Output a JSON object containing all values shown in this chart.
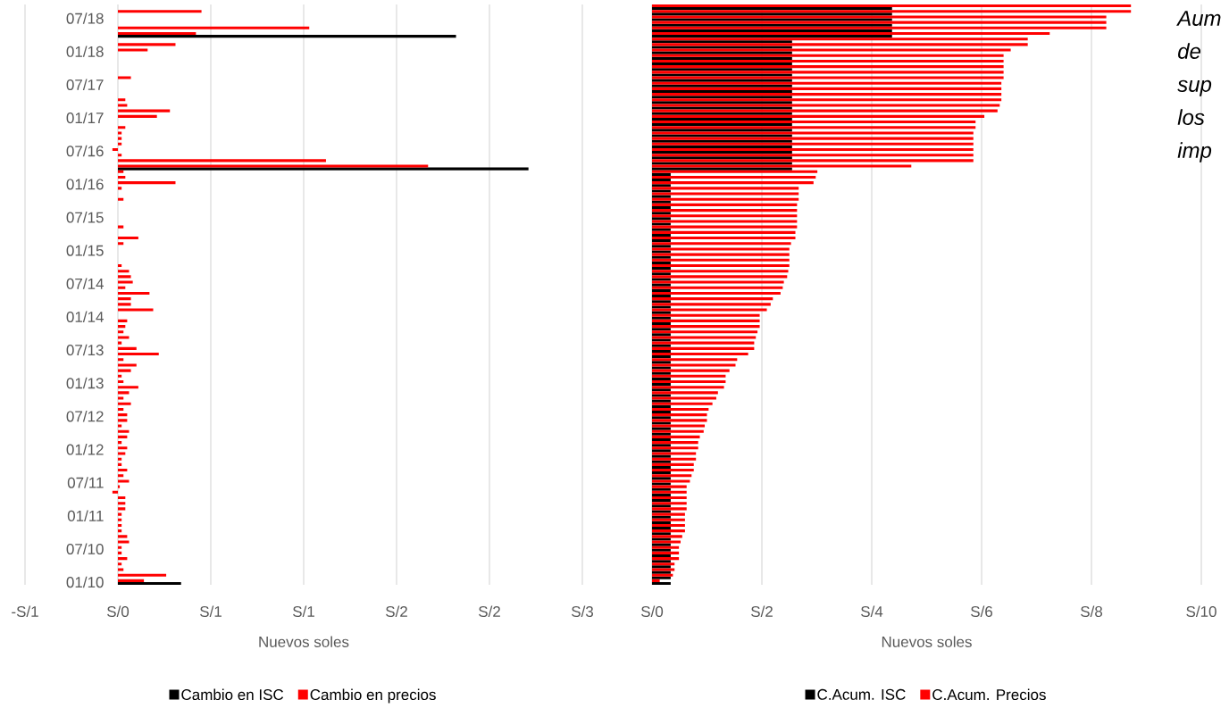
{
  "chart_data": [
    {
      "type": "bar",
      "orientation": "horizontal",
      "xlabel": "Nuevos soles",
      "categories": [
        null,
        null,
        "07/18",
        null,
        null,
        null,
        null,
        null,
        "01/18",
        null,
        null,
        null,
        null,
        null,
        "07/17",
        null,
        null,
        null,
        null,
        null,
        "01/17",
        null,
        null,
        null,
        null,
        null,
        "07/16",
        null,
        null,
        null,
        null,
        null,
        "01/16",
        null,
        null,
        null,
        null,
        null,
        "07/15",
        null,
        null,
        null,
        null,
        null,
        "01/15",
        null,
        null,
        null,
        null,
        null,
        "07/14",
        null,
        null,
        null,
        null,
        null,
        "01/14",
        null,
        null,
        null,
        null,
        null,
        "07/13",
        null,
        null,
        null,
        null,
        null,
        "01/13",
        null,
        null,
        null,
        null,
        null,
        "07/12",
        null,
        null,
        null,
        null,
        null,
        "01/12",
        null,
        null,
        null,
        null,
        null,
        "07/11",
        null,
        null,
        null,
        null,
        null,
        "01/11",
        null,
        null,
        null,
        null,
        null,
        "07/10",
        null,
        null,
        null,
        null,
        null,
        "01/10"
      ],
      "series": [
        {
          "name": "Cambio en ISC",
          "color": "#000000",
          "values": [
            0,
            0,
            0,
            0,
            0,
            1.82,
            0,
            0,
            0,
            0,
            0,
            0,
            0,
            0,
            0,
            0,
            0,
            0,
            0,
            0,
            0,
            0,
            0,
            0,
            0,
            0,
            0,
            0,
            0,
            2.21,
            0,
            0,
            0,
            0,
            0,
            0,
            0,
            0,
            0,
            0,
            0,
            0,
            0,
            0,
            0,
            0,
            0,
            0,
            0,
            0,
            0,
            0,
            0,
            0,
            0,
            0,
            0,
            0,
            0,
            0,
            0,
            0,
            0,
            0,
            0,
            0,
            0,
            0,
            0,
            0,
            0,
            0,
            0,
            0,
            0,
            0,
            0,
            0,
            0,
            0,
            0,
            0,
            0,
            0,
            0,
            0,
            0,
            0,
            0,
            0,
            0,
            0,
            0,
            0,
            0,
            0,
            0,
            0,
            0,
            0,
            0,
            0,
            0,
            0,
            0.34
          ]
        },
        {
          "name": "Cambio en precios",
          "color": "#ff0000",
          "values": [
            0,
            0.45,
            0,
            0,
            1.03,
            0.42,
            0,
            0.31,
            0.16,
            0,
            0,
            0,
            0,
            0.07,
            0,
            0,
            0,
            0.04,
            0.05,
            0.28,
            0.21,
            0,
            0.04,
            0.02,
            0.02,
            0.02,
            -0.03,
            0.02,
            1.12,
            1.67,
            0.03,
            0.04,
            0.31,
            0.02,
            0,
            0.03,
            0,
            0,
            0,
            0,
            0.03,
            0,
            0.11,
            0.03,
            0,
            0,
            0,
            0.02,
            0.06,
            0.07,
            0.08,
            0.04,
            0.17,
            0.07,
            0.07,
            0.19,
            0,
            0.05,
            0.04,
            0.03,
            0.06,
            0.02,
            0.1,
            0.22,
            0.03,
            0.1,
            0.07,
            0.02,
            0.03,
            0.11,
            0.06,
            0.03,
            0.07,
            0.03,
            0.05,
            0.05,
            0.02,
            0.06,
            0.05,
            0.02,
            0.05,
            0.04,
            0.02,
            0.02,
            0.05,
            0.03,
            0.06,
            0.01,
            -0.03,
            0.04,
            0.04,
            0.04,
            0.02,
            0.02,
            0.02,
            0.02,
            0.05,
            0.06,
            0.02,
            0.02,
            0.05,
            0.02,
            0.03,
            0.26,
            0.14
          ]
        }
      ],
      "xlim": [
        -0.5,
        2.5
      ],
      "xticks": [
        {
          "value": -0.5,
          "label": "-S/1"
        },
        {
          "value": 0,
          "label": "S/0"
        },
        {
          "value": 0.5,
          "label": "S/1"
        },
        {
          "value": 1,
          "label": "S/1"
        },
        {
          "value": 1.5,
          "label": "S/2"
        },
        {
          "value": 2,
          "label": "S/2"
        },
        {
          "value": 2.5,
          "label": "S/3"
        }
      ],
      "grid": "x",
      "legend": "bottom"
    },
    {
      "type": "bar",
      "orientation": "horizontal",
      "xlabel": "Nuevos soles",
      "categories": [
        null,
        null,
        null,
        null,
        null,
        null,
        null,
        null,
        null,
        null,
        null,
        null,
        null,
        null,
        null,
        null,
        null,
        null,
        null,
        null,
        null,
        null,
        null,
        null,
        null,
        null,
        null,
        null,
        null,
        null,
        null,
        null,
        null,
        null,
        null,
        null,
        null,
        null,
        null,
        null,
        null,
        null,
        null,
        null,
        null,
        null,
        null,
        null,
        null,
        null,
        null,
        null,
        null,
        null,
        null,
        null,
        null,
        null,
        null,
        null,
        null,
        null,
        null,
        null,
        null,
        null,
        null,
        null,
        null,
        null,
        null,
        null,
        null,
        null,
        null,
        null,
        null,
        null,
        null,
        null,
        null,
        null,
        null,
        null,
        null,
        null,
        null,
        null,
        null,
        null,
        null,
        null,
        null,
        null,
        null,
        null,
        null,
        null,
        null,
        null,
        null,
        null,
        null,
        null,
        null
      ],
      "series": [
        {
          "name": "C.Acum. ISC",
          "color": "#000000",
          "values": [
            4.37,
            4.37,
            4.37,
            4.37,
            4.37,
            4.37,
            2.55,
            2.55,
            2.55,
            2.55,
            2.55,
            2.55,
            2.55,
            2.55,
            2.55,
            2.55,
            2.55,
            2.55,
            2.55,
            2.55,
            2.55,
            2.55,
            2.55,
            2.55,
            2.55,
            2.55,
            2.55,
            2.55,
            2.55,
            2.55,
            0.34,
            0.34,
            0.34,
            0.34,
            0.34,
            0.34,
            0.34,
            0.34,
            0.34,
            0.34,
            0.34,
            0.34,
            0.34,
            0.34,
            0.34,
            0.34,
            0.34,
            0.34,
            0.34,
            0.34,
            0.34,
            0.34,
            0.34,
            0.34,
            0.34,
            0.34,
            0.34,
            0.34,
            0.34,
            0.34,
            0.34,
            0.34,
            0.34,
            0.34,
            0.34,
            0.34,
            0.34,
            0.34,
            0.34,
            0.34,
            0.34,
            0.34,
            0.34,
            0.34,
            0.34,
            0.34,
            0.34,
            0.34,
            0.34,
            0.34,
            0.34,
            0.34,
            0.34,
            0.34,
            0.34,
            0.34,
            0.34,
            0.34,
            0.34,
            0.34,
            0.34,
            0.34,
            0.34,
            0.34,
            0.34,
            0.34,
            0.34,
            0.34,
            0.34,
            0.34,
            0.34,
            0.34,
            0.34,
            0.34,
            0.34
          ]
        },
        {
          "name": "C.Acum. Precios",
          "color": "#ff0000",
          "values": [
            8.72,
            8.72,
            8.27,
            8.27,
            8.27,
            7.24,
            6.84,
            6.84,
            6.53,
            6.4,
            6.4,
            6.4,
            6.4,
            6.4,
            6.36,
            6.36,
            6.36,
            6.36,
            6.33,
            6.29,
            6.05,
            5.89,
            5.89,
            5.85,
            5.85,
            5.85,
            5.85,
            5.85,
            5.85,
            4.72,
            3.01,
            2.98,
            2.94,
            2.67,
            2.67,
            2.67,
            2.64,
            2.64,
            2.64,
            2.64,
            2.64,
            2.61,
            2.61,
            2.53,
            2.5,
            2.5,
            2.5,
            2.5,
            2.48,
            2.46,
            2.4,
            2.38,
            2.34,
            2.2,
            2.16,
            2.09,
            1.96,
            1.96,
            1.96,
            1.92,
            1.89,
            1.86,
            1.86,
            1.75,
            1.55,
            1.52,
            1.41,
            1.34,
            1.34,
            1.31,
            1.2,
            1.17,
            1.1,
            1.03,
            1.0,
            1.0,
            0.96,
            0.94,
            0.87,
            0.84,
            0.84,
            0.8,
            0.8,
            0.76,
            0.76,
            0.72,
            0.69,
            0.63,
            0.63,
            0.63,
            0.63,
            0.63,
            0.6,
            0.6,
            0.6,
            0.6,
            0.55,
            0.52,
            0.49,
            0.49,
            0.49,
            0.41,
            0.41,
            0.38,
            0.14
          ]
        }
      ],
      "xlim": [
        0,
        10
      ],
      "xticks": [
        {
          "value": 0,
          "label": "S/0"
        },
        {
          "value": 2,
          "label": "S/2"
        },
        {
          "value": 4,
          "label": "S/4"
        },
        {
          "value": 6,
          "label": "S/6"
        },
        {
          "value": 8,
          "label": "S/8"
        },
        {
          "value": 10,
          "label": "S/10"
        }
      ],
      "grid": "x",
      "legend": "bottom",
      "annotations": [
        "Aum de sup los imp"
      ]
    }
  ]
}
